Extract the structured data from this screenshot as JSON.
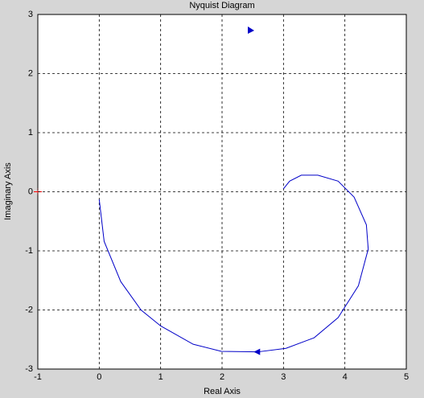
{
  "chart_data": {
    "type": "line",
    "title": "Nyquist Diagram",
    "x_label": "Real Axis",
    "y_label": "Imaginary Axis",
    "x": [
      0,
      0.08,
      0.35,
      0.68,
      1.0,
      1.53,
      1.99,
      2.58,
      3.04,
      3.5,
      3.89,
      4.22,
      4.38,
      4.35,
      4.15,
      3.89,
      3.56,
      3.29,
      3.1,
      3.0
    ],
    "series": [
      {
        "color": "#0000c8",
        "values": [
          -0.13,
          -0.84,
          -1.52,
          -2.0,
          -2.27,
          -2.58,
          -2.7,
          -2.71,
          -2.65,
          -2.47,
          -2.13,
          -1.59,
          -0.97,
          -0.56,
          -0.09,
          0.18,
          0.28,
          0.28,
          0.18,
          0.05
        ]
      }
    ],
    "xlim": [
      -1,
      5
    ],
    "ylim": [
      -3,
      3
    ],
    "xticks": [
      -1,
      0,
      1,
      2,
      3,
      4,
      5
    ],
    "yticks": [
      -3,
      -2,
      -1,
      0,
      1,
      2,
      3
    ],
    "grid": true
  }
}
